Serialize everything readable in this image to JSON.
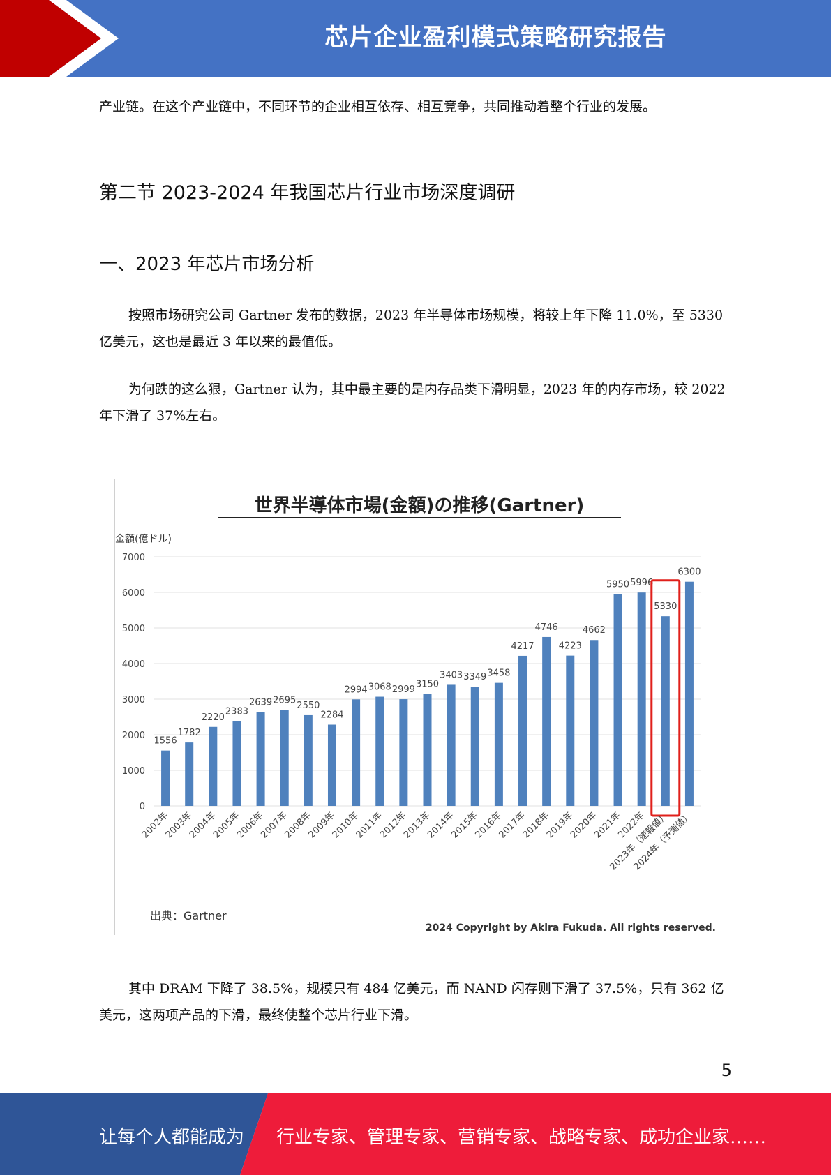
{
  "header": {
    "title": "芯片企业盈利模式策略研究报告"
  },
  "body": {
    "intro_paragraph": "产业链。在这个产业链中，不同环节的企业相互依存、相互竞争，共同推动着整个行业的发展。",
    "section_heading": "第二节 2023-2024 年我国芯片行业市场深度调研",
    "subsection_heading": "一、2023 年芯片市场分析",
    "paragraph_1": "按照市场研究公司 Gartner 发布的数据，2023 年半导体市场规模，将较上年下降 11.0%，至 5330 亿美元，这也是最近 3 年以来的最值低。",
    "paragraph_2": "为何跌的这么狠，Gartner 认为，其中最主要的是内存品类下滑明显，2023 年的内存市场，较 2022 年下滑了 37%左右。",
    "paragraph_3": "其中 DRAM 下降了 38.5%，规模只有 484 亿美元，而 NAND 闪存则下滑了 37.5%，只有 362 亿美元，这两项产品的下滑，最终使整个芯片行业下滑。"
  },
  "chart_data": {
    "type": "bar",
    "title": "世界半導体市場(金額)の推移(Gartner)",
    "ylabel": "金額(億ドル)",
    "ylim": [
      0,
      7000
    ],
    "yticks": [
      "0",
      "1000",
      "2000",
      "3000",
      "4000",
      "5000",
      "6000",
      "7000"
    ],
    "categories": [
      "2002年",
      "2003年",
      "2004年",
      "2005年",
      "2006年",
      "2007年",
      "2008年",
      "2009年",
      "2010年",
      "2011年",
      "2012年",
      "2013年",
      "2014年",
      "2015年",
      "2016年",
      "2017年",
      "2018年",
      "2019年",
      "2020年",
      "2021年",
      "2022年",
      "2023年（速報値）",
      "2024年（予測値）"
    ],
    "values": [
      1556,
      1782,
      2220,
      2383,
      2639,
      2695,
      2550,
      2284,
      2994,
      3068,
      2999,
      3150,
      3403,
      3349,
      3458,
      4217,
      4746,
      4223,
      4662,
      5950,
      5996,
      5330,
      6300
    ],
    "grid": true,
    "highlight_category": "2023年（速報値）",
    "bar_color": "#4f81bd",
    "highlight_color": "#e0201b",
    "source": "出典：Gartner",
    "copyright": "2024 Copyright by Akira Fukuda. All rights reserved."
  },
  "page_number": "5",
  "footer": {
    "left_text": "让每个人都能成为",
    "right_text": "行业专家、管理专家、营销专家、战略专家、成功企业家……"
  },
  "colors": {
    "header_blue": "#4472c4",
    "header_red": "#c00000",
    "footer_blue": "#2f5597",
    "footer_red": "#ee1c3a"
  }
}
